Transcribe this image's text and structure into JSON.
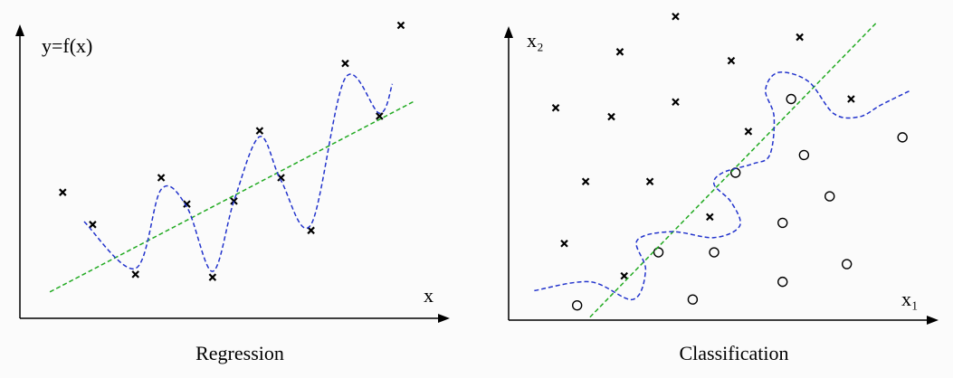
{
  "chart_data": [
    {
      "type": "scatter",
      "title": "Regression",
      "ylabel": "y=f(x)",
      "xlabel": "x",
      "xlim": [
        0,
        10
      ],
      "ylim": [
        0,
        10
      ],
      "series": [
        {
          "type": "scatter",
          "marker": "x",
          "color": "#000000",
          "x": [
            1.0,
            1.7,
            2.7,
            3.3,
            3.9,
            4.5,
            5.0,
            5.6,
            6.1,
            6.8,
            7.6,
            8.4,
            8.9
          ],
          "values": [
            4.3,
            3.2,
            1.5,
            4.8,
            3.9,
            1.4,
            4.0,
            6.4,
            4.8,
            3.0,
            8.7,
            6.9,
            10.0
          ]
        },
        {
          "type": "line",
          "style": "dashed",
          "color": "#22aa22",
          "x": [
            0.7,
            9.2
          ],
          "values": [
            0.9,
            7.4
          ]
        },
        {
          "type": "line",
          "style": "dashed",
          "color": "#2233cc",
          "x": [
            1.5,
            2.7,
            3.3,
            3.9,
            4.5,
            5.0,
            5.6,
            6.1,
            6.8,
            7.6,
            8.4,
            8.7
          ],
          "values": [
            3.3,
            1.7,
            4.4,
            3.8,
            1.6,
            4.0,
            6.2,
            4.7,
            3.2,
            8.2,
            7.0,
            8.0
          ]
        }
      ]
    },
    {
      "type": "scatter",
      "title": "Classification",
      "ylabel": "x₂",
      "xlabel": "x₁",
      "xlim": [
        0,
        10
      ],
      "ylim": [
        0,
        10
      ],
      "series": [
        {
          "type": "scatter",
          "marker": "x",
          "color": "#000000",
          "x": [
            1.1,
            2.6,
            3.9,
            2.4,
            3.9,
            5.2,
            6.8,
            8.0,
            5.6,
            1.8,
            3.3,
            4.7,
            1.3,
            2.7
          ],
          "values": [
            7.2,
            9.1,
            10.3,
            6.9,
            7.4,
            8.8,
            9.6,
            7.5,
            6.4,
            4.7,
            4.7,
            3.5,
            2.6,
            1.5
          ]
        },
        {
          "type": "scatter",
          "marker": "o",
          "color": "#000000",
          "x": [
            6.6,
            6.9,
            9.2,
            5.3,
            7.5,
            6.4,
            4.8,
            3.5,
            7.9,
            6.4,
            4.3,
            1.6
          ],
          "values": [
            7.5,
            5.6,
            6.2,
            5.0,
            4.2,
            3.3,
            2.3,
            2.3,
            1.9,
            1.3,
            0.7,
            0.5
          ]
        },
        {
          "type": "line",
          "style": "dashed",
          "color": "#22aa22",
          "x": [
            1.9,
            8.6
          ],
          "values": [
            0.1,
            10.1
          ]
        },
        {
          "type": "line",
          "style": "dashed",
          "color": "#2233cc",
          "x": [
            0.6,
            1.9,
            2.9,
            3.2,
            3.0,
            3.8,
            4.8,
            5.4,
            5.2,
            4.8,
            5.0,
            5.7,
            6.1,
            6.2,
            6.0,
            6.3,
            7.0,
            7.6,
            8.2,
            8.7,
            9.4
          ],
          "values": [
            1.0,
            1.3,
            0.7,
            1.7,
            2.7,
            3.0,
            2.8,
            3.2,
            4.0,
            4.6,
            5.0,
            5.3,
            5.6,
            6.9,
            7.8,
            8.4,
            8.1,
            7.0,
            6.9,
            7.3,
            7.8
          ]
        }
      ]
    }
  ]
}
